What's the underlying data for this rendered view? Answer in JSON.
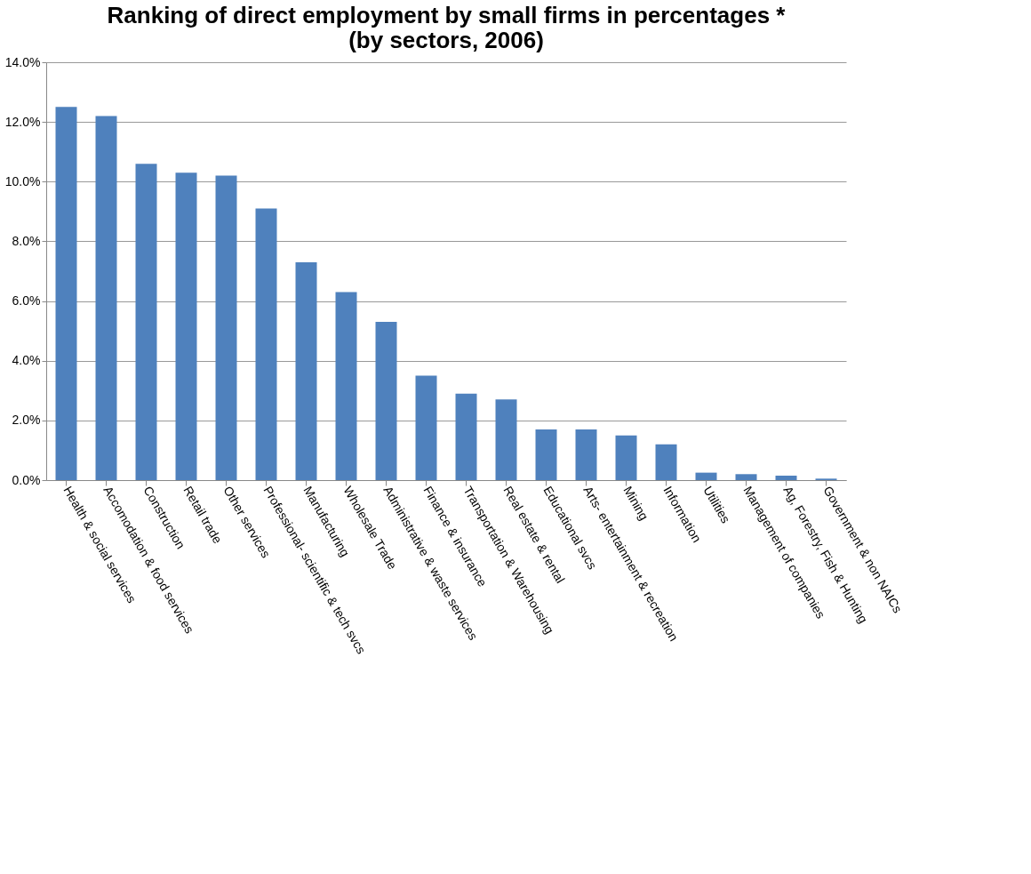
{
  "chart_data": {
    "type": "bar",
    "title": "Ranking of direct employment by small firms in percentages *\n(by sectors, 2006)",
    "categories": [
      "Health & social services",
      "Accomodation & food services",
      "Construction",
      "Retail trade",
      "Other services",
      "Professional- scientific & tech svcs",
      "Manufacturing",
      "Wholesale Trade",
      "Administrative & waste services",
      "Finance & insurance",
      "Transportation & Warehousing",
      "Real estate & rental",
      "Educational svcs",
      "Arts- entertainment & recreation",
      "Mining",
      "Information",
      "Utilities",
      "Management of companies",
      "Ag, Forestry, Fish & Hunting",
      "Government & non NAICs"
    ],
    "values": [
      12.5,
      12.2,
      10.6,
      10.3,
      10.2,
      9.1,
      7.3,
      6.3,
      5.3,
      3.5,
      2.9,
      2.7,
      1.7,
      1.7,
      1.5,
      1.2,
      0.25,
      0.2,
      0.15,
      0.05
    ],
    "color": "#4f81bd",
    "ylim": [
      0,
      14
    ],
    "yticks": [
      {
        "value": 0,
        "label": "0.0%"
      },
      {
        "value": 2,
        "label": "2.0%"
      },
      {
        "value": 4,
        "label": "4.0%"
      },
      {
        "value": 6,
        "label": "6.0%"
      },
      {
        "value": 8,
        "label": "8.0%"
      },
      {
        "value": 10,
        "label": "10.0%"
      },
      {
        "value": 12,
        "label": "12.0%"
      },
      {
        "value": 14,
        "label": "14.0%"
      }
    ],
    "grid": "y"
  }
}
